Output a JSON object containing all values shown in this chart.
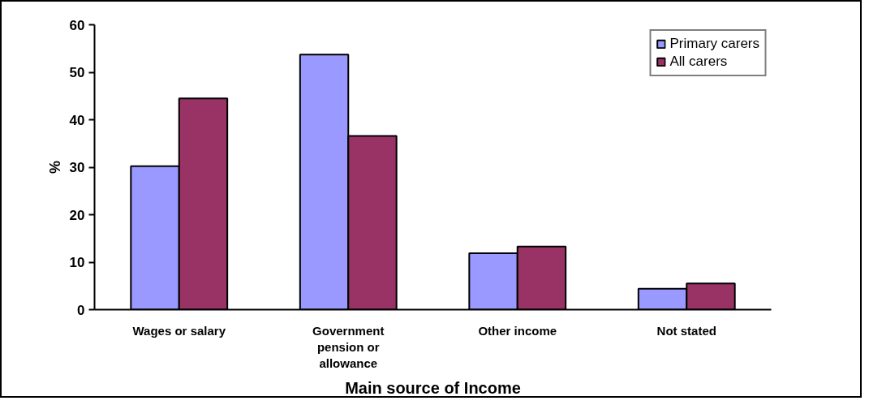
{
  "chart_data": {
    "type": "bar",
    "xlabel": "Main source of Income",
    "ylabel": "%",
    "categories": [
      "Wages or salary",
      "Government pension or allowance",
      "Other income",
      "Not stated"
    ],
    "series": [
      {
        "name": "Primary carers",
        "color": "#9999ff",
        "values": [
          30.2,
          53.7,
          11.9,
          4.4
        ]
      },
      {
        "name": "All carers",
        "color": "#993366",
        "values": [
          44.5,
          36.6,
          13.3,
          5.5
        ]
      }
    ],
    "ylim": [
      0,
      60
    ],
    "yticks": [
      0,
      10,
      20,
      30,
      40,
      50,
      60
    ],
    "legend": "top right"
  }
}
